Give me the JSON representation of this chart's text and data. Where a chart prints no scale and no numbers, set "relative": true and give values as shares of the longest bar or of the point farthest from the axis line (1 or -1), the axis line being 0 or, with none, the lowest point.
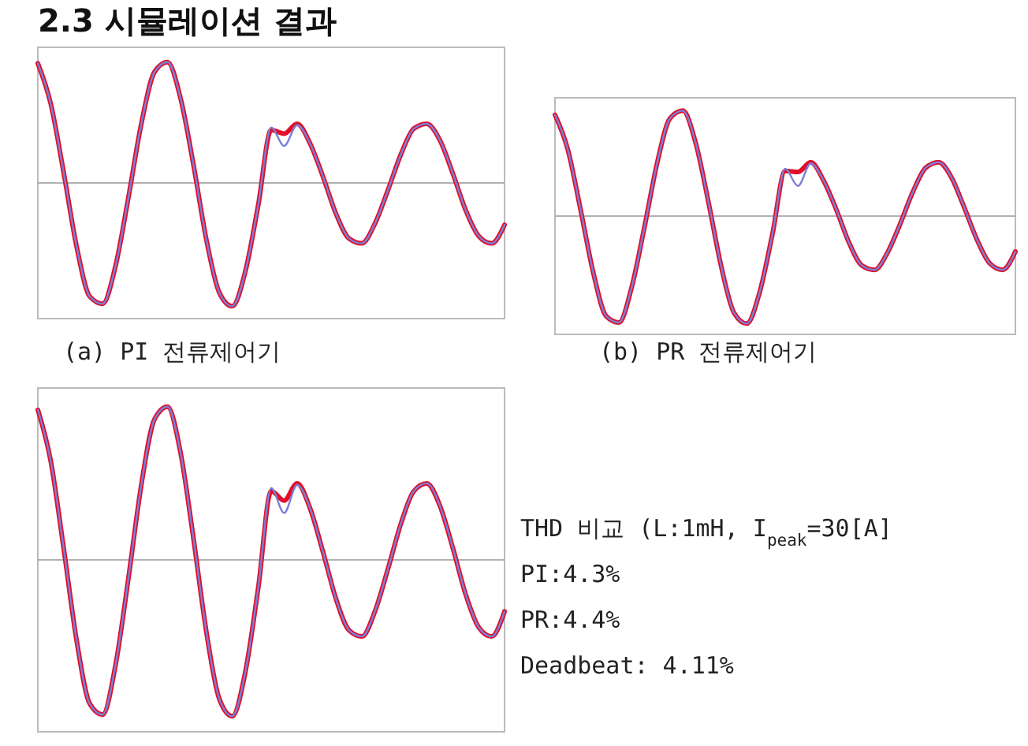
{
  "chart_data": [
    {
      "type": "other",
      "title": "2.3 시뮬레이션 결과"
    },
    {
      "type": "line",
      "title": "(a) PI 전류제어기",
      "relative": true,
      "categories": [
        null,
        null,
        null,
        null,
        null,
        null,
        null,
        null,
        null,
        null,
        null,
        null,
        null,
        null,
        null,
        null,
        null,
        null,
        null,
        null,
        null,
        null,
        null,
        null,
        null,
        null,
        null,
        null,
        null,
        null,
        null,
        null,
        null,
        null,
        null,
        null,
        null
      ],
      "series": [
        {
          "color": "#e0102a",
          "values": [
            0.97,
            0.64,
            0.08,
            -0.52,
            -0.92,
            -0.98,
            -0.67,
            -0.11,
            0.49,
            0.9,
            0.98,
            0.69,
            0.15,
            -0.46,
            -0.89,
            -1,
            -0.72,
            -0.18,
            0.43,
            0.4,
            0.48,
            0.32,
            0.05,
            -0.25,
            -0.45,
            -0.49,
            -0.33,
            -0.06,
            0.23,
            0.44,
            0.48,
            0.35,
            0.08,
            -0.22,
            -0.43,
            -0.49,
            -0.34
          ]
        },
        {
          "color": "#7b7fd8",
          "values": [
            0.97,
            0.64,
            0.08,
            -0.52,
            -0.92,
            -0.98,
            -0.67,
            -0.11,
            0.49,
            0.9,
            0.98,
            0.69,
            0.15,
            -0.46,
            -0.89,
            -1,
            -0.72,
            -0.18,
            0.45,
            0.3,
            0.47,
            0.32,
            0.05,
            -0.25,
            -0.45,
            -0.49,
            -0.33,
            -0.06,
            0.23,
            0.44,
            0.48,
            0.35,
            0.08,
            -0.22,
            -0.43,
            -0.49,
            -0.34
          ]
        }
      ]
    },
    {
      "type": "line",
      "title": "(b) PR 전류제어기",
      "relative": true,
      "categories": [
        null,
        null,
        null,
        null,
        null,
        null,
        null,
        null,
        null,
        null,
        null,
        null,
        null,
        null,
        null,
        null,
        null,
        null,
        null,
        null,
        null,
        null,
        null,
        null,
        null,
        null,
        null,
        null,
        null,
        null,
        null,
        null,
        null,
        null,
        null,
        null,
        null
      ],
      "series": [
        {
          "color": "#e0102a",
          "values": [
            0.94,
            0.62,
            0.06,
            -0.53,
            -0.93,
            -0.99,
            -0.66,
            -0.1,
            0.5,
            0.91,
            0.98,
            0.68,
            0.13,
            -0.47,
            -0.9,
            -1,
            -0.71,
            -0.17,
            0.42,
            0.41,
            0.5,
            0.33,
            0.06,
            -0.25,
            -0.46,
            -0.5,
            -0.34,
            -0.07,
            0.23,
            0.45,
            0.5,
            0.36,
            0.08,
            -0.22,
            -0.44,
            -0.5,
            -0.33
          ]
        },
        {
          "color": "#7b7fd8",
          "values": [
            0.94,
            0.62,
            0.06,
            -0.53,
            -0.93,
            -0.99,
            -0.66,
            -0.1,
            0.5,
            0.91,
            0.98,
            0.68,
            0.13,
            -0.47,
            -0.9,
            -1,
            -0.71,
            -0.17,
            0.44,
            0.28,
            0.49,
            0.33,
            0.06,
            -0.25,
            -0.46,
            -0.5,
            -0.34,
            -0.07,
            0.23,
            0.45,
            0.5,
            0.36,
            0.08,
            -0.22,
            -0.44,
            -0.5,
            -0.33
          ]
        }
      ]
    },
    {
      "type": "line",
      "relative": true,
      "categories": [
        null,
        null,
        null,
        null,
        null,
        null,
        null,
        null,
        null,
        null,
        null,
        null,
        null,
        null,
        null,
        null,
        null,
        null,
        null,
        null,
        null,
        null,
        null,
        null,
        null,
        null,
        null,
        null,
        null,
        null,
        null,
        null,
        null,
        null,
        null,
        null,
        null
      ],
      "series": [
        {
          "color": "#e0102a",
          "values": [
            0.96,
            0.63,
            0.07,
            -0.52,
            -0.92,
            -0.99,
            -0.67,
            -0.11,
            0.49,
            0.9,
            0.98,
            0.69,
            0.14,
            -0.46,
            -0.89,
            -1,
            -0.72,
            -0.18,
            0.44,
            0.38,
            0.49,
            0.33,
            0.05,
            -0.25,
            -0.45,
            -0.49,
            -0.33,
            -0.06,
            0.23,
            0.44,
            0.49,
            0.35,
            0.08,
            -0.22,
            -0.43,
            -0.49,
            -0.33
          ]
        },
        {
          "color": "#7b7fd8",
          "values": [
            0.96,
            0.63,
            0.07,
            -0.52,
            -0.92,
            -0.99,
            -0.67,
            -0.11,
            0.49,
            0.9,
            0.98,
            0.69,
            0.14,
            -0.46,
            -0.89,
            -1,
            -0.72,
            -0.18,
            0.46,
            0.3,
            0.48,
            0.33,
            0.05,
            -0.25,
            -0.45,
            -0.49,
            -0.33,
            -0.06,
            0.23,
            0.44,
            0.49,
            0.35,
            0.08,
            -0.22,
            -0.43,
            -0.49,
            -0.33
          ]
        }
      ]
    },
    {
      "type": "other",
      "annotations": [
        "THD 비교 (L:1mH, I$_{peak}$=30[A]",
        "PI:4.3%",
        "PR:4.4%",
        "Deadbeat: 4.11%"
      ]
    }
  ]
}
